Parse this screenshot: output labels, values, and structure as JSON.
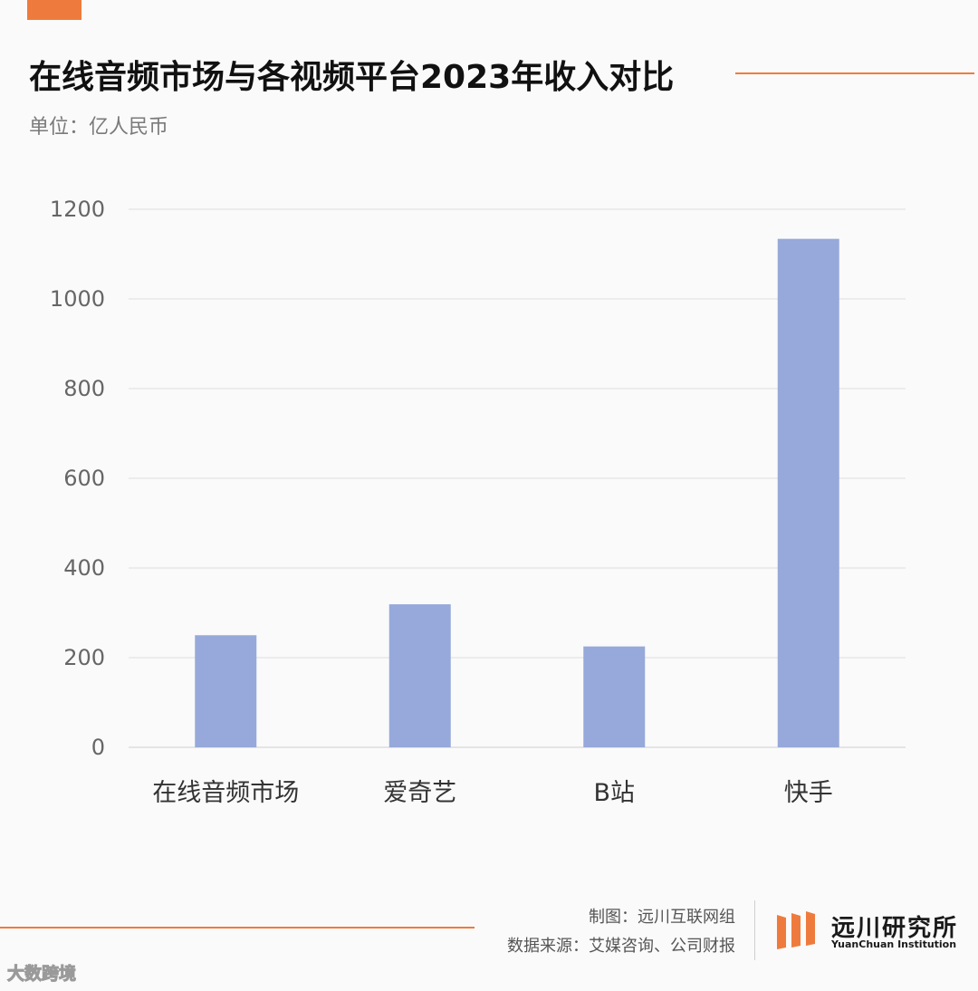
{
  "header": {
    "title": "在线音频市场与各视频平台2023年收入对比",
    "subtitle": "单位：亿人民币"
  },
  "chart_data": {
    "type": "bar",
    "categories": [
      "在线音频市场",
      "爱奇艺",
      "B站",
      "快手"
    ],
    "values": [
      250,
      319,
      225,
      1134
    ],
    "ylim": [
      0,
      1200
    ],
    "yticks": [
      0,
      200,
      400,
      600,
      800,
      1000,
      1200
    ],
    "grid": true,
    "bar_color": "#97a9da"
  },
  "footer": {
    "maker": "制图：远川互联网组",
    "source": "数据来源：艾媒咨询、公司财报",
    "logo_cn": "远川研究所",
    "logo_en": "YuanChuan Institution",
    "watermark": "大数跨境"
  },
  "colors": {
    "accent": "#ee7b3d",
    "grid": "#dddddd",
    "text": "#111111"
  }
}
